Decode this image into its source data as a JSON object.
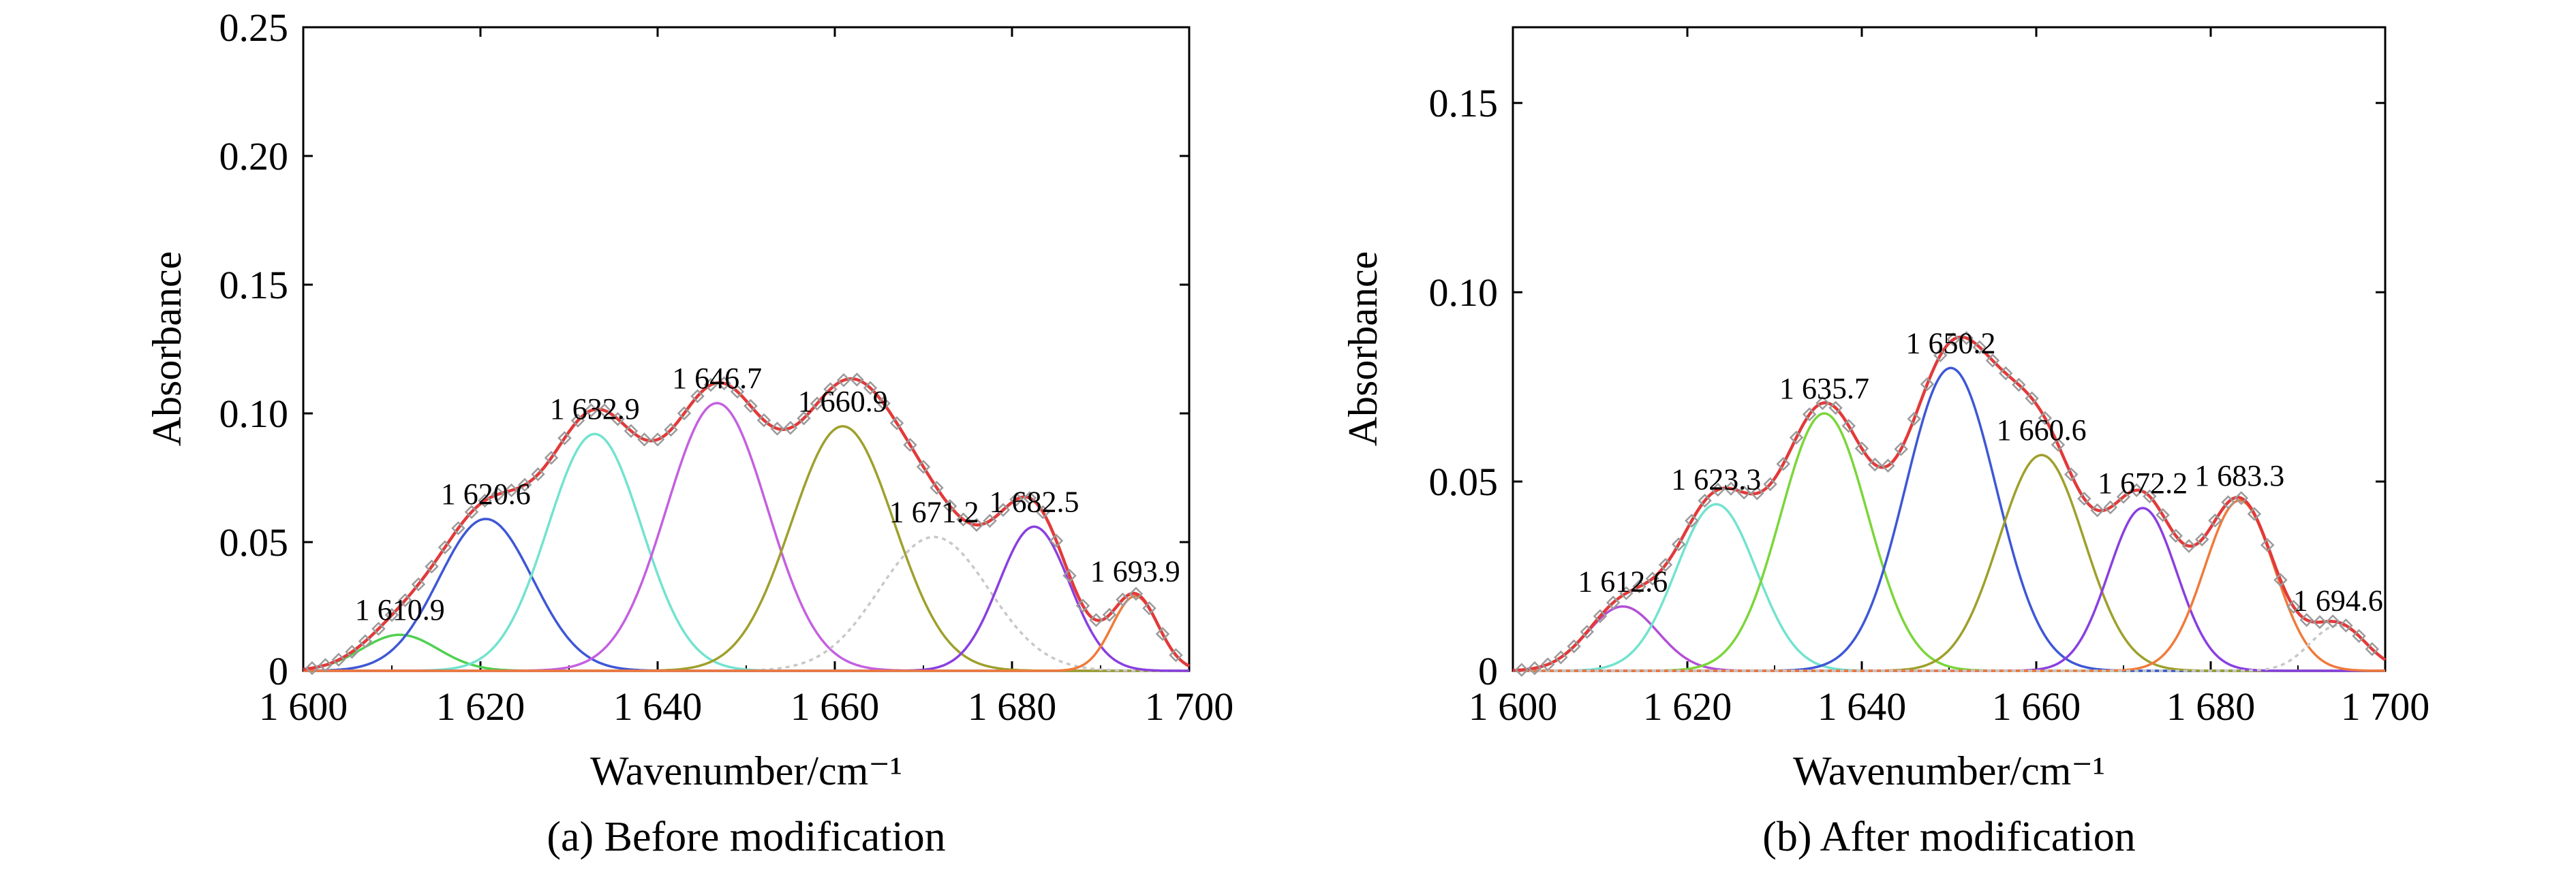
{
  "chart_data": [
    {
      "type": "line",
      "caption": "(a) Before modification",
      "xlabel": "Wavenumber/cm⁻¹",
      "ylabel": "Absorbance",
      "xlim": [
        1600,
        1700
      ],
      "ylim": [
        0,
        0.25
      ],
      "xticks": [
        1600,
        1620,
        1640,
        1660,
        1680,
        1700
      ],
      "xtick_labels": [
        "1 600",
        "1 620",
        "1 640",
        "1 660",
        "1 680",
        "1 700"
      ],
      "yticks": [
        0,
        0.05,
        0.1,
        0.15,
        0.2,
        0.25
      ],
      "ytick_labels": [
        "0",
        "0.05",
        "0.10",
        "0.15",
        "0.20",
        "0.25"
      ],
      "grid": false,
      "fit_color": "#e23a3a",
      "data_marker_color": "#9a9a9a",
      "peaks": [
        {
          "label": "1 610.9",
          "center": 1610.9,
          "height": 0.014,
          "sigma": 4.3,
          "color": "#4fd04f",
          "style": "solid"
        },
        {
          "label": "1 620.6",
          "center": 1620.6,
          "height": 0.059,
          "sigma": 5.3,
          "color": "#3e57d6",
          "style": "solid"
        },
        {
          "label": "1 632.9",
          "center": 1632.9,
          "height": 0.092,
          "sigma": 5.3,
          "color": "#72e3cf",
          "style": "solid"
        },
        {
          "label": "1 646.7",
          "center": 1646.7,
          "height": 0.104,
          "sigma": 5.7,
          "color": "#c460e0",
          "style": "solid"
        },
        {
          "label": "1 660.9",
          "center": 1660.9,
          "height": 0.095,
          "sigma": 5.8,
          "color": "#9ea02c",
          "style": "solid"
        },
        {
          "label": "1 671.2",
          "center": 1671.2,
          "height": 0.052,
          "sigma": 6.2,
          "color": "#c8c8c8",
          "style": "dotted"
        },
        {
          "label": "1 682.5",
          "center": 1682.5,
          "height": 0.056,
          "sigma": 4.0,
          "color": "#8a3fe0",
          "style": "solid"
        },
        {
          "label": "1 693.9",
          "center": 1693.9,
          "height": 0.029,
          "sigma": 2.6,
          "color": "#f07a3a",
          "style": "solid"
        }
      ]
    },
    {
      "type": "line",
      "caption": "(b) After modification",
      "xlabel": "Wavenumber/cm⁻¹",
      "ylabel": "Absorbance",
      "xlim": [
        1600,
        1700
      ],
      "ylim": [
        0,
        0.17
      ],
      "xticks": [
        1600,
        1620,
        1640,
        1660,
        1680,
        1700
      ],
      "xtick_labels": [
        "1 600",
        "1 620",
        "1 640",
        "1 660",
        "1 680",
        "1 700"
      ],
      "yticks": [
        0,
        0.05,
        0.1,
        0.15
      ],
      "ytick_labels": [
        "0",
        "0.05",
        "0.10",
        "0.15"
      ],
      "grid": false,
      "fit_color": "#e23a3a",
      "data_marker_color": "#9a9a9a",
      "peaks": [
        {
          "label": "1 612.6",
          "center": 1612.6,
          "height": 0.017,
          "sigma": 4.0,
          "color": "#b34fd6",
          "style": "solid"
        },
        {
          "label": "1 623.3",
          "center": 1623.3,
          "height": 0.044,
          "sigma": 4.6,
          "color": "#72e3cf",
          "style": "solid"
        },
        {
          "label": "1 635.7",
          "center": 1635.7,
          "height": 0.068,
          "sigma": 5.0,
          "color": "#7ad63a",
          "style": "solid"
        },
        {
          "label": "1 650.2",
          "center": 1650.2,
          "height": 0.08,
          "sigma": 5.2,
          "color": "#3e57d6",
          "style": "solid"
        },
        {
          "label": "1 660.6",
          "center": 1660.6,
          "height": 0.057,
          "sigma": 4.9,
          "color": "#9ea02c",
          "style": "solid"
        },
        {
          "label": "1 672.2",
          "center": 1672.2,
          "height": 0.043,
          "sigma": 3.9,
          "color": "#8a3fe0",
          "style": "solid"
        },
        {
          "label": "1 683.3",
          "center": 1683.3,
          "height": 0.045,
          "sigma": 4.0,
          "color": "#f07a3a",
          "style": "solid"
        },
        {
          "label": "1 694.6",
          "center": 1694.6,
          "height": 0.012,
          "sigma": 3.2,
          "color": "#c8c8c8",
          "style": "dotted"
        }
      ]
    }
  ]
}
